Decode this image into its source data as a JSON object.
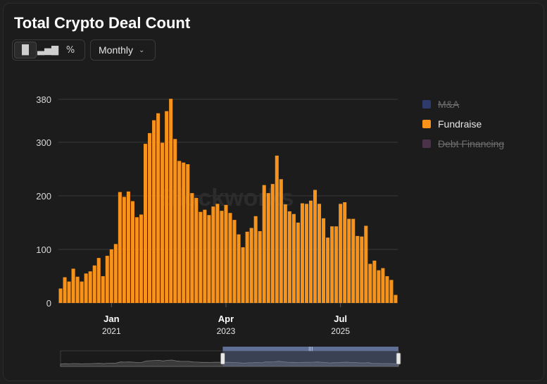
{
  "title": "Total Crypto Deal Count",
  "toolbar": {
    "chart_types": [
      {
        "name": "bar-chart",
        "glyph": "▐▌",
        "active": true
      },
      {
        "name": "stacked-bar-chart",
        "glyph": "▃▅▇",
        "active": false
      },
      {
        "name": "percent",
        "glyph": "%",
        "active": false
      }
    ],
    "period": "Monthly",
    "period_icon": "chevron-down-icon"
  },
  "watermark": "Blockworks",
  "legend": [
    {
      "label": "M&A",
      "color": "#2e3a6b",
      "enabled": false
    },
    {
      "label": "Fundraise",
      "color": "#f7931a",
      "enabled": true
    },
    {
      "label": "Debt Financing",
      "color": "#4a3348",
      "enabled": false
    }
  ],
  "chart_data": {
    "type": "bar",
    "title": "Total Crypto Deal Count",
    "start": "2020-01",
    "series": [
      {
        "name": "Fundraise",
        "color": "#f7931a",
        "values": [
          27,
          48,
          40,
          64,
          49,
          40,
          55,
          59,
          70,
          84,
          50,
          88,
          100,
          110,
          207,
          198,
          208,
          190,
          160,
          165,
          297,
          317,
          341,
          354,
          299,
          358,
          381,
          306,
          265,
          262,
          259,
          205,
          196,
          170,
          174,
          164,
          180,
          185,
          172,
          183,
          168,
          155,
          128,
          104,
          133,
          140,
          162,
          134,
          220,
          205,
          222,
          275,
          231,
          184,
          171,
          166,
          150,
          186,
          185,
          191,
          211,
          185,
          158,
          122,
          143,
          143,
          185,
          188,
          157,
          157,
          125,
          124,
          144,
          73,
          79,
          61,
          65,
          50,
          43,
          15
        ]
      }
    ],
    "x_ticks": [
      {
        "label": "Jan",
        "year": "2021",
        "index": 12
      },
      {
        "label": "Apr",
        "year": "2023",
        "index": 39
      },
      {
        "label": "Jul",
        "year": "2025",
        "index": 66
      }
    ],
    "ylim": [
      0,
      390
    ],
    "y_ticks": [
      0,
      100,
      200,
      300,
      380
    ],
    "grid": true,
    "legend_position": "right",
    "navigator": {
      "range_start": 0.48,
      "range_end": 1.0,
      "handle_label": "|||"
    }
  }
}
